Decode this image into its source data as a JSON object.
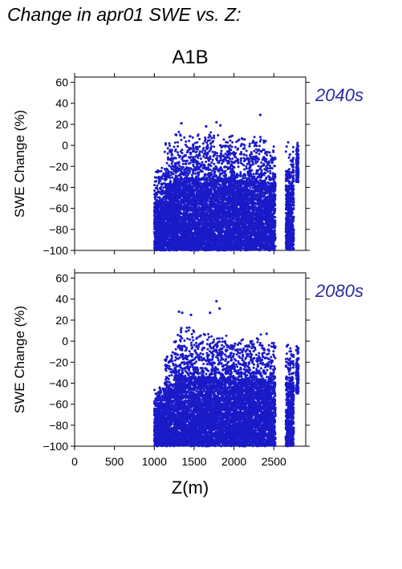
{
  "page": {
    "title": "Change in apr01 SWE vs. Z:"
  },
  "chart_data": {
    "type": "scatter",
    "scenario": "A1B",
    "xlabel": "Z(m)",
    "xlim": [
      0,
      2900
    ],
    "xticks": [
      0,
      500,
      1000,
      1500,
      2000,
      2500
    ],
    "point_color": "#1a1ac8",
    "label_color": "#2a2aa8",
    "panels": [
      {
        "period": "2040s",
        "ylabel": "SWE Change (%)",
        "ylim": [
          -100,
          65
        ],
        "yticks": [
          60,
          40,
          20,
          0,
          -20,
          -40,
          -60,
          -80,
          -100
        ],
        "clusters": [
          {
            "x_range": [
              1000,
              1130
            ],
            "y_range": [
              -100,
              -20
            ]
          },
          {
            "x_range": [
              1130,
              1250
            ],
            "y_range": [
              -100,
              5
            ]
          },
          {
            "x_range": [
              1250,
              2000
            ],
            "y_range": [
              -100,
              15
            ]
          },
          {
            "x_range": [
              2000,
              2400
            ],
            "y_range": [
              -100,
              10
            ]
          },
          {
            "x_range": [
              2400,
              2520
            ],
            "y_range": [
              -100,
              5
            ]
          },
          {
            "x_range": [
              2650,
              2750
            ],
            "y_range": [
              -100,
              3
            ]
          },
          {
            "x_range": [
              2780,
              2810
            ],
            "y_range": [
              -35,
              5
            ]
          }
        ],
        "outliers": [
          {
            "x": 1340,
            "y": 21
          },
          {
            "x": 1780,
            "y": 22
          },
          {
            "x": 1830,
            "y": 19
          },
          {
            "x": 2330,
            "y": 29
          },
          {
            "x": 1650,
            "y": 18
          }
        ]
      },
      {
        "period": "2080s",
        "ylabel": "SWE Change (%)",
        "ylim": [
          -100,
          65
        ],
        "yticks": [
          60,
          40,
          20,
          0,
          -20,
          -40,
          -60,
          -80,
          -100
        ],
        "clusters": [
          {
            "x_range": [
              1000,
              1130
            ],
            "y_range": [
              -100,
              -40
            ]
          },
          {
            "x_range": [
              1130,
              1250
            ],
            "y_range": [
              -100,
              -10
            ]
          },
          {
            "x_range": [
              1250,
              1500
            ],
            "y_range": [
              -100,
              15
            ]
          },
          {
            "x_range": [
              1500,
              2000
            ],
            "y_range": [
              -100,
              10
            ]
          },
          {
            "x_range": [
              2000,
              2400
            ],
            "y_range": [
              -100,
              7
            ]
          },
          {
            "x_range": [
              2400,
              2520
            ],
            "y_range": [
              -100,
              0
            ]
          },
          {
            "x_range": [
              2650,
              2750
            ],
            "y_range": [
              -100,
              0
            ]
          },
          {
            "x_range": [
              2780,
              2810
            ],
            "y_range": [
              -50,
              0
            ]
          }
        ],
        "outliers": [
          {
            "x": 1310,
            "y": 28
          },
          {
            "x": 1350,
            "y": 27
          },
          {
            "x": 1460,
            "y": 25
          },
          {
            "x": 1780,
            "y": 38
          },
          {
            "x": 1820,
            "y": 31
          },
          {
            "x": 1700,
            "y": 27
          },
          {
            "x": 2410,
            "y": 7
          }
        ]
      }
    ]
  }
}
